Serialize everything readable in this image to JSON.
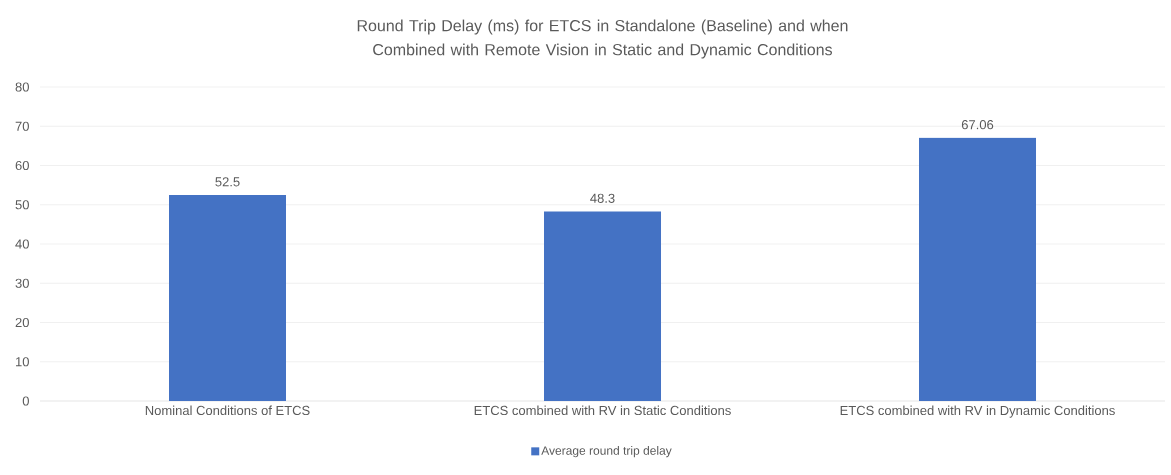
{
  "chart_data": {
    "type": "bar",
    "title": "Round Trip Delay (ms) for ETCS in Standalone (Baseline) and when Combined with Remote Vision in Static and Dynamic Conditions",
    "categories": [
      "Nominal Conditions of ETCS",
      "ETCS combined with RV in Static Conditions",
      "ETCS combined with RV in Dynamic Conditions"
    ],
    "series": [
      {
        "name": "Average round trip delay",
        "color": "#4472c4",
        "values": [
          52.5,
          48.3,
          67.06
        ]
      }
    ],
    "ylim": [
      0,
      80
    ],
    "yticks": [
      0,
      10,
      20,
      30,
      40,
      50,
      60,
      70,
      80
    ],
    "grid": "y",
    "legend": "bottom",
    "data_labels": true
  }
}
